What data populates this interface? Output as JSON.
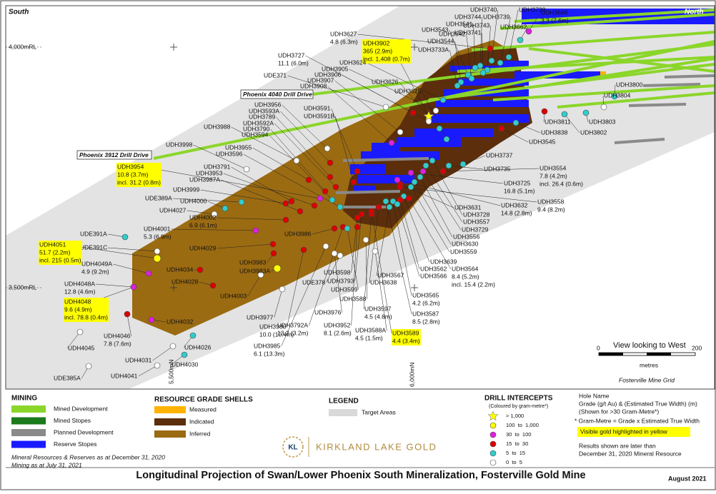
{
  "map": {
    "south": "South",
    "north": "North",
    "rl": [
      "4,000mRL",
      "3,500mRL"
    ],
    "northings": [
      "5,500mN",
      "6,000mN"
    ],
    "drives": [
      "Phoenix 4040 Drill Drive",
      "Phoenix 3912 Drill Drive"
    ],
    "holes": [
      {
        "name": "UDH3740"
      },
      {
        "name": "UDH3739"
      },
      {
        "name": "UDH3738"
      },
      {
        "name": "UDH3688",
        "grade": "3.3 (7.6m)"
      },
      {
        "name": "UDH3744"
      },
      {
        "name": "UDH3541"
      },
      {
        "name": "UDH3743"
      },
      {
        "name": "UDH3662"
      },
      {
        "name": "UDH3741"
      },
      {
        "name": "UDH3543"
      },
      {
        "name": "UDH3542"
      },
      {
        "name": "UDH3544"
      },
      {
        "name": "UDH3733A"
      },
      {
        "name": "UDH3627",
        "grade": "4.8 (6.3m)"
      },
      {
        "name": "UDH3902",
        "grade": "365 (2.9m)",
        "incl": "incl. 1,408 (0.7m)",
        "visible_gold": true
      },
      {
        "name": "UDH3727",
        "grade": "11.1 (6.0m)"
      },
      {
        "name": "UDH3624"
      },
      {
        "name": "UDH3905"
      },
      {
        "name": "UDH3906"
      },
      {
        "name": "UDE371"
      },
      {
        "name": "UDH3907"
      },
      {
        "name": "UDH3908"
      },
      {
        "name": "UDH3626"
      },
      {
        "name": "UDH3625"
      },
      {
        "name": "UDH3956"
      },
      {
        "name": "UDH3591"
      },
      {
        "name": "UDH3593A"
      },
      {
        "name": "UDH3591B"
      },
      {
        "name": "UDH3789"
      },
      {
        "name": "UDH3592A"
      },
      {
        "name": "UDH3790"
      },
      {
        "name": "UDH3988"
      },
      {
        "name": "UDH3594"
      },
      {
        "name": "UDH3998"
      },
      {
        "name": "UDH3955"
      },
      {
        "name": "UDH3596"
      },
      {
        "name": "UDH3954",
        "grade": "10.8 (3.7m)",
        "incl": "incl. 31.2 (0.8m)",
        "visible_gold": true
      },
      {
        "name": "UDH3791"
      },
      {
        "name": "UDH3953"
      },
      {
        "name": "UDH3987A"
      },
      {
        "name": "UDH3999"
      },
      {
        "name": "UDE389A"
      },
      {
        "name": "UDH4000"
      },
      {
        "name": "UDH4027"
      },
      {
        "name": "UDH4002",
        "grade": "6.9 (6.1m)"
      },
      {
        "name": "UDH4001",
        "grade": "5.3 (6.9m)"
      },
      {
        "name": "UDE391A"
      },
      {
        "name": "UDE391C"
      },
      {
        "name": "UDH4051",
        "grade": "51.7 (2.2m)",
        "incl": "incl. 215 (0.5m)",
        "visible_gold": true
      },
      {
        "name": "UDH4029"
      },
      {
        "name": "UDH3986"
      },
      {
        "name": "UDH3983"
      },
      {
        "name": "UDH3983A"
      },
      {
        "name": "UDH4049A",
        "grade": "4.9 (9.2m)"
      },
      {
        "name": "UDH4034"
      },
      {
        "name": "UDH4028"
      },
      {
        "name": "UDH4048A",
        "grade": "12.8 (4.6m)"
      },
      {
        "name": "UDH4003"
      },
      {
        "name": "UDH4048",
        "grade": "9.6 (4.9m)",
        "incl": "incl. 78.8 (0.4m)",
        "visible_gold": true
      },
      {
        "name": "UDH3977"
      },
      {
        "name": "UDH4032"
      },
      {
        "name": "UDH3980",
        "grade": "10.0 (10.4m)"
      },
      {
        "name": "UDH4046",
        "grade": "7.8 (7.6m)"
      },
      {
        "name": "UDH4026"
      },
      {
        "name": "UDH4045"
      },
      {
        "name": "UDH3985",
        "grade": "6.1 (13.3m)"
      },
      {
        "name": "UDH4031"
      },
      {
        "name": "UDH4030"
      },
      {
        "name": "UDE385A"
      },
      {
        "name": "UDH4041"
      },
      {
        "name": "UDH3976"
      },
      {
        "name": "UDH3792A",
        "grade": "13.2 (3.2m)"
      },
      {
        "name": "UDH3952",
        "grade": "8.1 (2.6m)"
      },
      {
        "name": "UDE378"
      },
      {
        "name": "UDH3598"
      },
      {
        "name": "UDH3793"
      },
      {
        "name": "UDH3599"
      },
      {
        "name": "UDH3588"
      },
      {
        "name": "UDH3597",
        "grade": "4.5 (4.8m)"
      },
      {
        "name": "UDH3588A",
        "grade": "4.5 (1.5m)"
      },
      {
        "name": "UDH3589",
        "grade": "4.4 (3.4m)",
        "visible_gold": true
      },
      {
        "name": "UDH3567"
      },
      {
        "name": "UDH3638"
      },
      {
        "name": "UDH3565",
        "grade": "4.2 (6.2m)"
      },
      {
        "name": "UDH3587",
        "grade": "8.5 (2.8m)"
      },
      {
        "name": "UDH3639"
      },
      {
        "name": "UDH3562"
      },
      {
        "name": "UDH3566"
      },
      {
        "name": "UDH3564",
        "grade": "8.4 (5.2m)",
        "incl": "incl. 15.4 (2.2m)"
      },
      {
        "name": "UDH3559"
      },
      {
        "name": "UDH3630"
      },
      {
        "name": "UDH3556"
      },
      {
        "name": "UDH3729"
      },
      {
        "name": "UDH3557"
      },
      {
        "name": "UDH3728"
      },
      {
        "name": "UDH3631"
      },
      {
        "name": "UDH3632",
        "grade": "14.8 (2.8m)"
      },
      {
        "name": "UDH3558",
        "grade": "9.4 (8.2m)"
      },
      {
        "name": "UDH3725",
        "grade": "16.8 (5.1m)"
      },
      {
        "name": "UDH3554",
        "grade": "7.8 (4.2m)",
        "incl": "incl. 26.4 (0.6m)"
      },
      {
        "name": "UDH3735"
      },
      {
        "name": "UDH3737"
      },
      {
        "name": "UDH3545"
      },
      {
        "name": "UDH3838"
      },
      {
        "name": "UDH3811"
      },
      {
        "name": "UDH3802"
      },
      {
        "name": "UDH3803"
      },
      {
        "name": "UDH3804"
      },
      {
        "name": "UDH3800"
      }
    ],
    "view": "View looking to West",
    "scale": [
      "0",
      "200"
    ],
    "scale_unit": "metres",
    "grid": "Fosterville Mine Grid"
  },
  "legend": {
    "mining": {
      "title": "MINING",
      "items": [
        "Mined Development",
        "Mined Stopes",
        "Planned Development",
        "Reserve Stopes"
      ]
    },
    "shells": {
      "title": "RESOURCE GRADE SHELLS",
      "items": [
        "Measured",
        "Indicated",
        "Inferred"
      ]
    },
    "other": {
      "title": "LEGEND",
      "items": [
        "Target Areas"
      ]
    },
    "intercepts": {
      "title": "DRILL INTERCEPTS",
      "subtitle": "(Coloured by gram-metre*)",
      "items": [
        "> 1,000",
        "100  to  1,000",
        "30  to  100",
        "15  to  30",
        "5  to  15",
        "0  to  5"
      ]
    },
    "notes": [
      "Hole Name",
      "Grade (g/t Au) & (Estimated True Width) (m)",
      "(Shown for >30 Gram-Metre*)",
      "* Gram-Metre = Grade x Estimated True Width",
      "Visible gold highlighted in yellow",
      "Results shown are later than",
      "December 31, 2020 Mineral Resource"
    ],
    "dates": [
      "Mineral Resources & Reserves as at December 31, 2020",
      "Mining as at July 31, 2021"
    ]
  },
  "logo": {
    "mark": "KL",
    "name": "KIRKLAND LAKE GOLD"
  },
  "footer": {
    "title": "Longitudinal Projection of Swan/Lower Phoenix South Mineralization, Fosterville Gold Mine",
    "date": "August 2021"
  }
}
